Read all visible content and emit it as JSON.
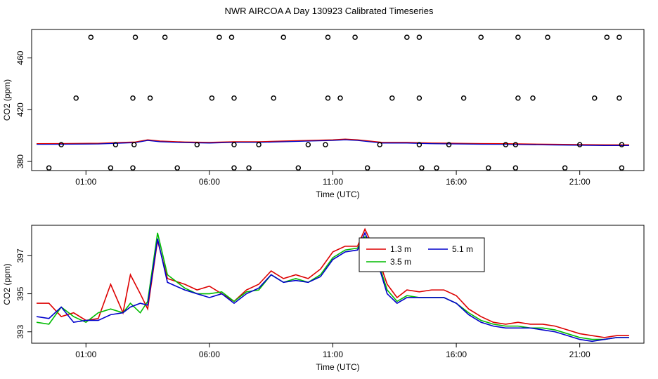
{
  "title": "NWR AIRCOA A  Day 130923  Calibrated Timeseries",
  "chart_data": [
    {
      "type": "scatter",
      "name": "top",
      "xlabel": "Time (UTC)",
      "ylabel": "CO2 (ppm)",
      "xlim": [
        -1.2,
        23.6
      ],
      "ylim": [
        373,
        482
      ],
      "x_ticks": [
        1,
        6,
        11,
        16,
        21
      ],
      "x_tick_labels": [
        "01:00",
        "06:00",
        "11:00",
        "16:00",
        "21:00"
      ],
      "y_ticks": [
        380,
        420,
        460
      ],
      "y_tick_labels": [
        "380",
        "420",
        "460"
      ],
      "outliers": [
        [
          -0.5,
          375
        ],
        [
          0.0,
          393
        ],
        [
          0.6,
          429
        ],
        [
          1.2,
          476
        ],
        [
          2.0,
          375
        ],
        [
          2.2,
          393
        ],
        [
          2.9,
          375
        ],
        [
          2.95,
          393
        ],
        [
          2.9,
          429
        ],
        [
          3.0,
          476
        ],
        [
          3.6,
          429
        ],
        [
          4.2,
          476
        ],
        [
          4.7,
          375
        ],
        [
          5.5,
          393
        ],
        [
          6.1,
          429
        ],
        [
          6.4,
          476
        ],
        [
          6.9,
          476
        ],
        [
          7.0,
          429
        ],
        [
          7.0,
          393
        ],
        [
          7.0,
          375
        ],
        [
          7.6,
          375
        ],
        [
          8.0,
          393
        ],
        [
          8.6,
          429
        ],
        [
          9.0,
          476
        ],
        [
          9.6,
          375
        ],
        [
          10.0,
          393
        ],
        [
          10.7,
          393
        ],
        [
          10.8,
          429
        ],
        [
          10.8,
          476
        ],
        [
          11.3,
          429
        ],
        [
          11.9,
          476
        ],
        [
          12.4,
          375
        ],
        [
          12.9,
          393
        ],
        [
          13.4,
          429
        ],
        [
          14.0,
          476
        ],
        [
          14.5,
          476
        ],
        [
          14.5,
          429
        ],
        [
          14.5,
          393
        ],
        [
          14.6,
          375
        ],
        [
          15.2,
          375
        ],
        [
          15.7,
          393
        ],
        [
          16.3,
          429
        ],
        [
          17.0,
          476
        ],
        [
          17.3,
          375
        ],
        [
          18.0,
          393
        ],
        [
          18.4,
          375
        ],
        [
          18.4,
          393
        ],
        [
          18.5,
          429
        ],
        [
          18.5,
          476
        ],
        [
          19.1,
          429
        ],
        [
          19.7,
          476
        ],
        [
          20.4,
          375
        ],
        [
          21.0,
          393
        ],
        [
          21.6,
          429
        ],
        [
          22.1,
          476
        ],
        [
          22.6,
          476
        ],
        [
          22.6,
          429
        ],
        [
          22.7,
          393
        ],
        [
          22.7,
          375
        ]
      ],
      "line_points": [
        [
          -1.0,
          393.5
        ],
        [
          0.0,
          393.6
        ],
        [
          1.5,
          393.8
        ],
        [
          2.5,
          394.5
        ],
        [
          3.0,
          394.8
        ],
        [
          3.5,
          396.5
        ],
        [
          4.0,
          395.5
        ],
        [
          5.0,
          394.8
        ],
        [
          6.0,
          394.5
        ],
        [
          7.0,
          395.0
        ],
        [
          8.0,
          395.0
        ],
        [
          9.0,
          395.5
        ],
        [
          10.0,
          396.0
        ],
        [
          11.0,
          396.5
        ],
        [
          11.5,
          397.0
        ],
        [
          12.0,
          396.5
        ],
        [
          13.0,
          394.5
        ],
        [
          14.0,
          394.5
        ],
        [
          15.0,
          394.0
        ],
        [
          16.0,
          393.8
        ],
        [
          17.0,
          393.6
        ],
        [
          18.0,
          393.5
        ],
        [
          19.0,
          393.2
        ],
        [
          20.0,
          393.0
        ],
        [
          21.0,
          392.8
        ],
        [
          22.0,
          392.6
        ],
        [
          23.0,
          392.6
        ]
      ]
    },
    {
      "type": "line",
      "name": "bottom",
      "xlabel": "Time (UTC)",
      "ylabel": "CO2 (ppm)",
      "xlim": [
        -1.2,
        23.6
      ],
      "ylim": [
        392.4,
        398.6
      ],
      "x_ticks": [
        1,
        6,
        11,
        16,
        21
      ],
      "x_tick_labels": [
        "01:00",
        "06:00",
        "11:00",
        "16:00",
        "21:00"
      ],
      "y_ticks": [
        393,
        395,
        397
      ],
      "y_tick_labels": [
        "393",
        "395",
        "397"
      ],
      "legend": [
        {
          "label": "1.3 m",
          "color": "#dd0000"
        },
        {
          "label": "3.5 m",
          "color": "#00bb00"
        },
        {
          "label": "5.1 m",
          "color": "#0000cc"
        }
      ],
      "series": [
        {
          "name": "1.3 m",
          "color": "#dd0000",
          "points": [
            [
              -1.0,
              394.5
            ],
            [
              -0.5,
              394.5
            ],
            [
              0.0,
              393.8
            ],
            [
              0.5,
              394.0
            ],
            [
              1.0,
              393.6
            ],
            [
              1.5,
              393.7
            ],
            [
              2.0,
              395.5
            ],
            [
              2.5,
              394.0
            ],
            [
              2.8,
              396.0
            ],
            [
              3.2,
              395.0
            ],
            [
              3.5,
              394.2
            ],
            [
              3.9,
              397.8
            ],
            [
              4.3,
              395.8
            ],
            [
              5.0,
              395.5
            ],
            [
              5.5,
              395.2
            ],
            [
              6.0,
              395.4
            ],
            [
              6.5,
              395.0
            ],
            [
              7.0,
              394.6
            ],
            [
              7.5,
              395.2
            ],
            [
              8.0,
              395.5
            ],
            [
              8.5,
              396.2
            ],
            [
              9.0,
              395.8
            ],
            [
              9.5,
              396.0
            ],
            [
              10.0,
              395.8
            ],
            [
              10.5,
              396.3
            ],
            [
              11.0,
              397.2
            ],
            [
              11.5,
              397.5
            ],
            [
              12.0,
              397.5
            ],
            [
              12.3,
              398.4
            ],
            [
              12.8,
              397.0
            ],
            [
              13.2,
              395.5
            ],
            [
              13.6,
              394.8
            ],
            [
              14.0,
              395.2
            ],
            [
              14.5,
              395.1
            ],
            [
              15.0,
              395.2
            ],
            [
              15.5,
              395.2
            ],
            [
              16.0,
              394.9
            ],
            [
              16.5,
              394.2
            ],
            [
              17.0,
              393.8
            ],
            [
              17.5,
              393.5
            ],
            [
              18.0,
              393.4
            ],
            [
              18.5,
              393.5
            ],
            [
              19.0,
              393.4
            ],
            [
              19.5,
              393.4
            ],
            [
              20.0,
              393.3
            ],
            [
              20.5,
              393.1
            ],
            [
              21.0,
              392.9
            ],
            [
              21.5,
              392.8
            ],
            [
              22.0,
              392.7
            ],
            [
              22.5,
              392.8
            ],
            [
              23.0,
              392.8
            ]
          ]
        },
        {
          "name": "3.5 m",
          "color": "#00bb00",
          "points": [
            [
              -1.0,
              393.5
            ],
            [
              -0.5,
              393.4
            ],
            [
              0.0,
              394.3
            ],
            [
              0.5,
              393.8
            ],
            [
              1.0,
              393.5
            ],
            [
              1.5,
              394.0
            ],
            [
              2.0,
              394.2
            ],
            [
              2.5,
              394.0
            ],
            [
              2.8,
              394.5
            ],
            [
              3.2,
              394.0
            ],
            [
              3.5,
              394.6
            ],
            [
              3.9,
              398.2
            ],
            [
              4.3,
              396.0
            ],
            [
              5.0,
              395.3
            ],
            [
              5.5,
              395.0
            ],
            [
              6.0,
              395.0
            ],
            [
              6.5,
              395.1
            ],
            [
              7.0,
              394.6
            ],
            [
              7.5,
              395.1
            ],
            [
              8.0,
              395.2
            ],
            [
              8.5,
              396.0
            ],
            [
              9.0,
              395.6
            ],
            [
              9.5,
              395.8
            ],
            [
              10.0,
              395.6
            ],
            [
              10.5,
              396.0
            ],
            [
              11.0,
              396.9
            ],
            [
              11.5,
              397.3
            ],
            [
              12.0,
              397.4
            ],
            [
              12.3,
              398.0
            ],
            [
              12.8,
              396.8
            ],
            [
              13.2,
              395.2
            ],
            [
              13.6,
              394.6
            ],
            [
              14.0,
              394.9
            ],
            [
              14.5,
              394.8
            ],
            [
              15.0,
              394.8
            ],
            [
              15.5,
              394.8
            ],
            [
              16.0,
              394.5
            ],
            [
              16.5,
              394.0
            ],
            [
              17.0,
              393.6
            ],
            [
              17.5,
              393.4
            ],
            [
              18.0,
              393.3
            ],
            [
              18.5,
              393.3
            ],
            [
              19.0,
              393.2
            ],
            [
              19.5,
              393.2
            ],
            [
              20.0,
              393.1
            ],
            [
              20.5,
              392.9
            ],
            [
              21.0,
              392.7
            ],
            [
              21.5,
              392.6
            ],
            [
              22.0,
              392.6
            ],
            [
              22.5,
              392.7
            ],
            [
              23.0,
              392.7
            ]
          ]
        },
        {
          "name": "5.1 m",
          "color": "#0000cc",
          "points": [
            [
              -1.0,
              393.8
            ],
            [
              -0.5,
              393.7
            ],
            [
              0.0,
              394.3
            ],
            [
              0.5,
              393.5
            ],
            [
              1.0,
              393.6
            ],
            [
              1.5,
              393.6
            ],
            [
              2.0,
              393.9
            ],
            [
              2.5,
              394.0
            ],
            [
              2.8,
              394.3
            ],
            [
              3.2,
              394.5
            ],
            [
              3.5,
              394.4
            ],
            [
              3.9,
              397.9
            ],
            [
              4.3,
              395.6
            ],
            [
              5.0,
              395.2
            ],
            [
              5.5,
              395.0
            ],
            [
              6.0,
              394.8
            ],
            [
              6.5,
              395.0
            ],
            [
              7.0,
              394.5
            ],
            [
              7.5,
              395.0
            ],
            [
              8.0,
              395.3
            ],
            [
              8.5,
              396.0
            ],
            [
              9.0,
              395.6
            ],
            [
              9.5,
              395.7
            ],
            [
              10.0,
              395.6
            ],
            [
              10.5,
              395.9
            ],
            [
              11.0,
              396.8
            ],
            [
              11.5,
              397.2
            ],
            [
              12.0,
              397.3
            ],
            [
              12.3,
              398.2
            ],
            [
              12.8,
              396.7
            ],
            [
              13.2,
              395.0
            ],
            [
              13.6,
              394.5
            ],
            [
              14.0,
              394.8
            ],
            [
              14.5,
              394.8
            ],
            [
              15.0,
              394.8
            ],
            [
              15.5,
              394.8
            ],
            [
              16.0,
              394.5
            ],
            [
              16.5,
              393.9
            ],
            [
              17.0,
              393.5
            ],
            [
              17.5,
              393.3
            ],
            [
              18.0,
              393.2
            ],
            [
              18.5,
              393.2
            ],
            [
              19.0,
              393.2
            ],
            [
              19.5,
              393.1
            ],
            [
              20.0,
              393.0
            ],
            [
              20.5,
              392.8
            ],
            [
              21.0,
              392.6
            ],
            [
              21.5,
              392.5
            ],
            [
              22.0,
              392.6
            ],
            [
              22.5,
              392.7
            ],
            [
              23.0,
              392.7
            ]
          ]
        }
      ]
    }
  ]
}
